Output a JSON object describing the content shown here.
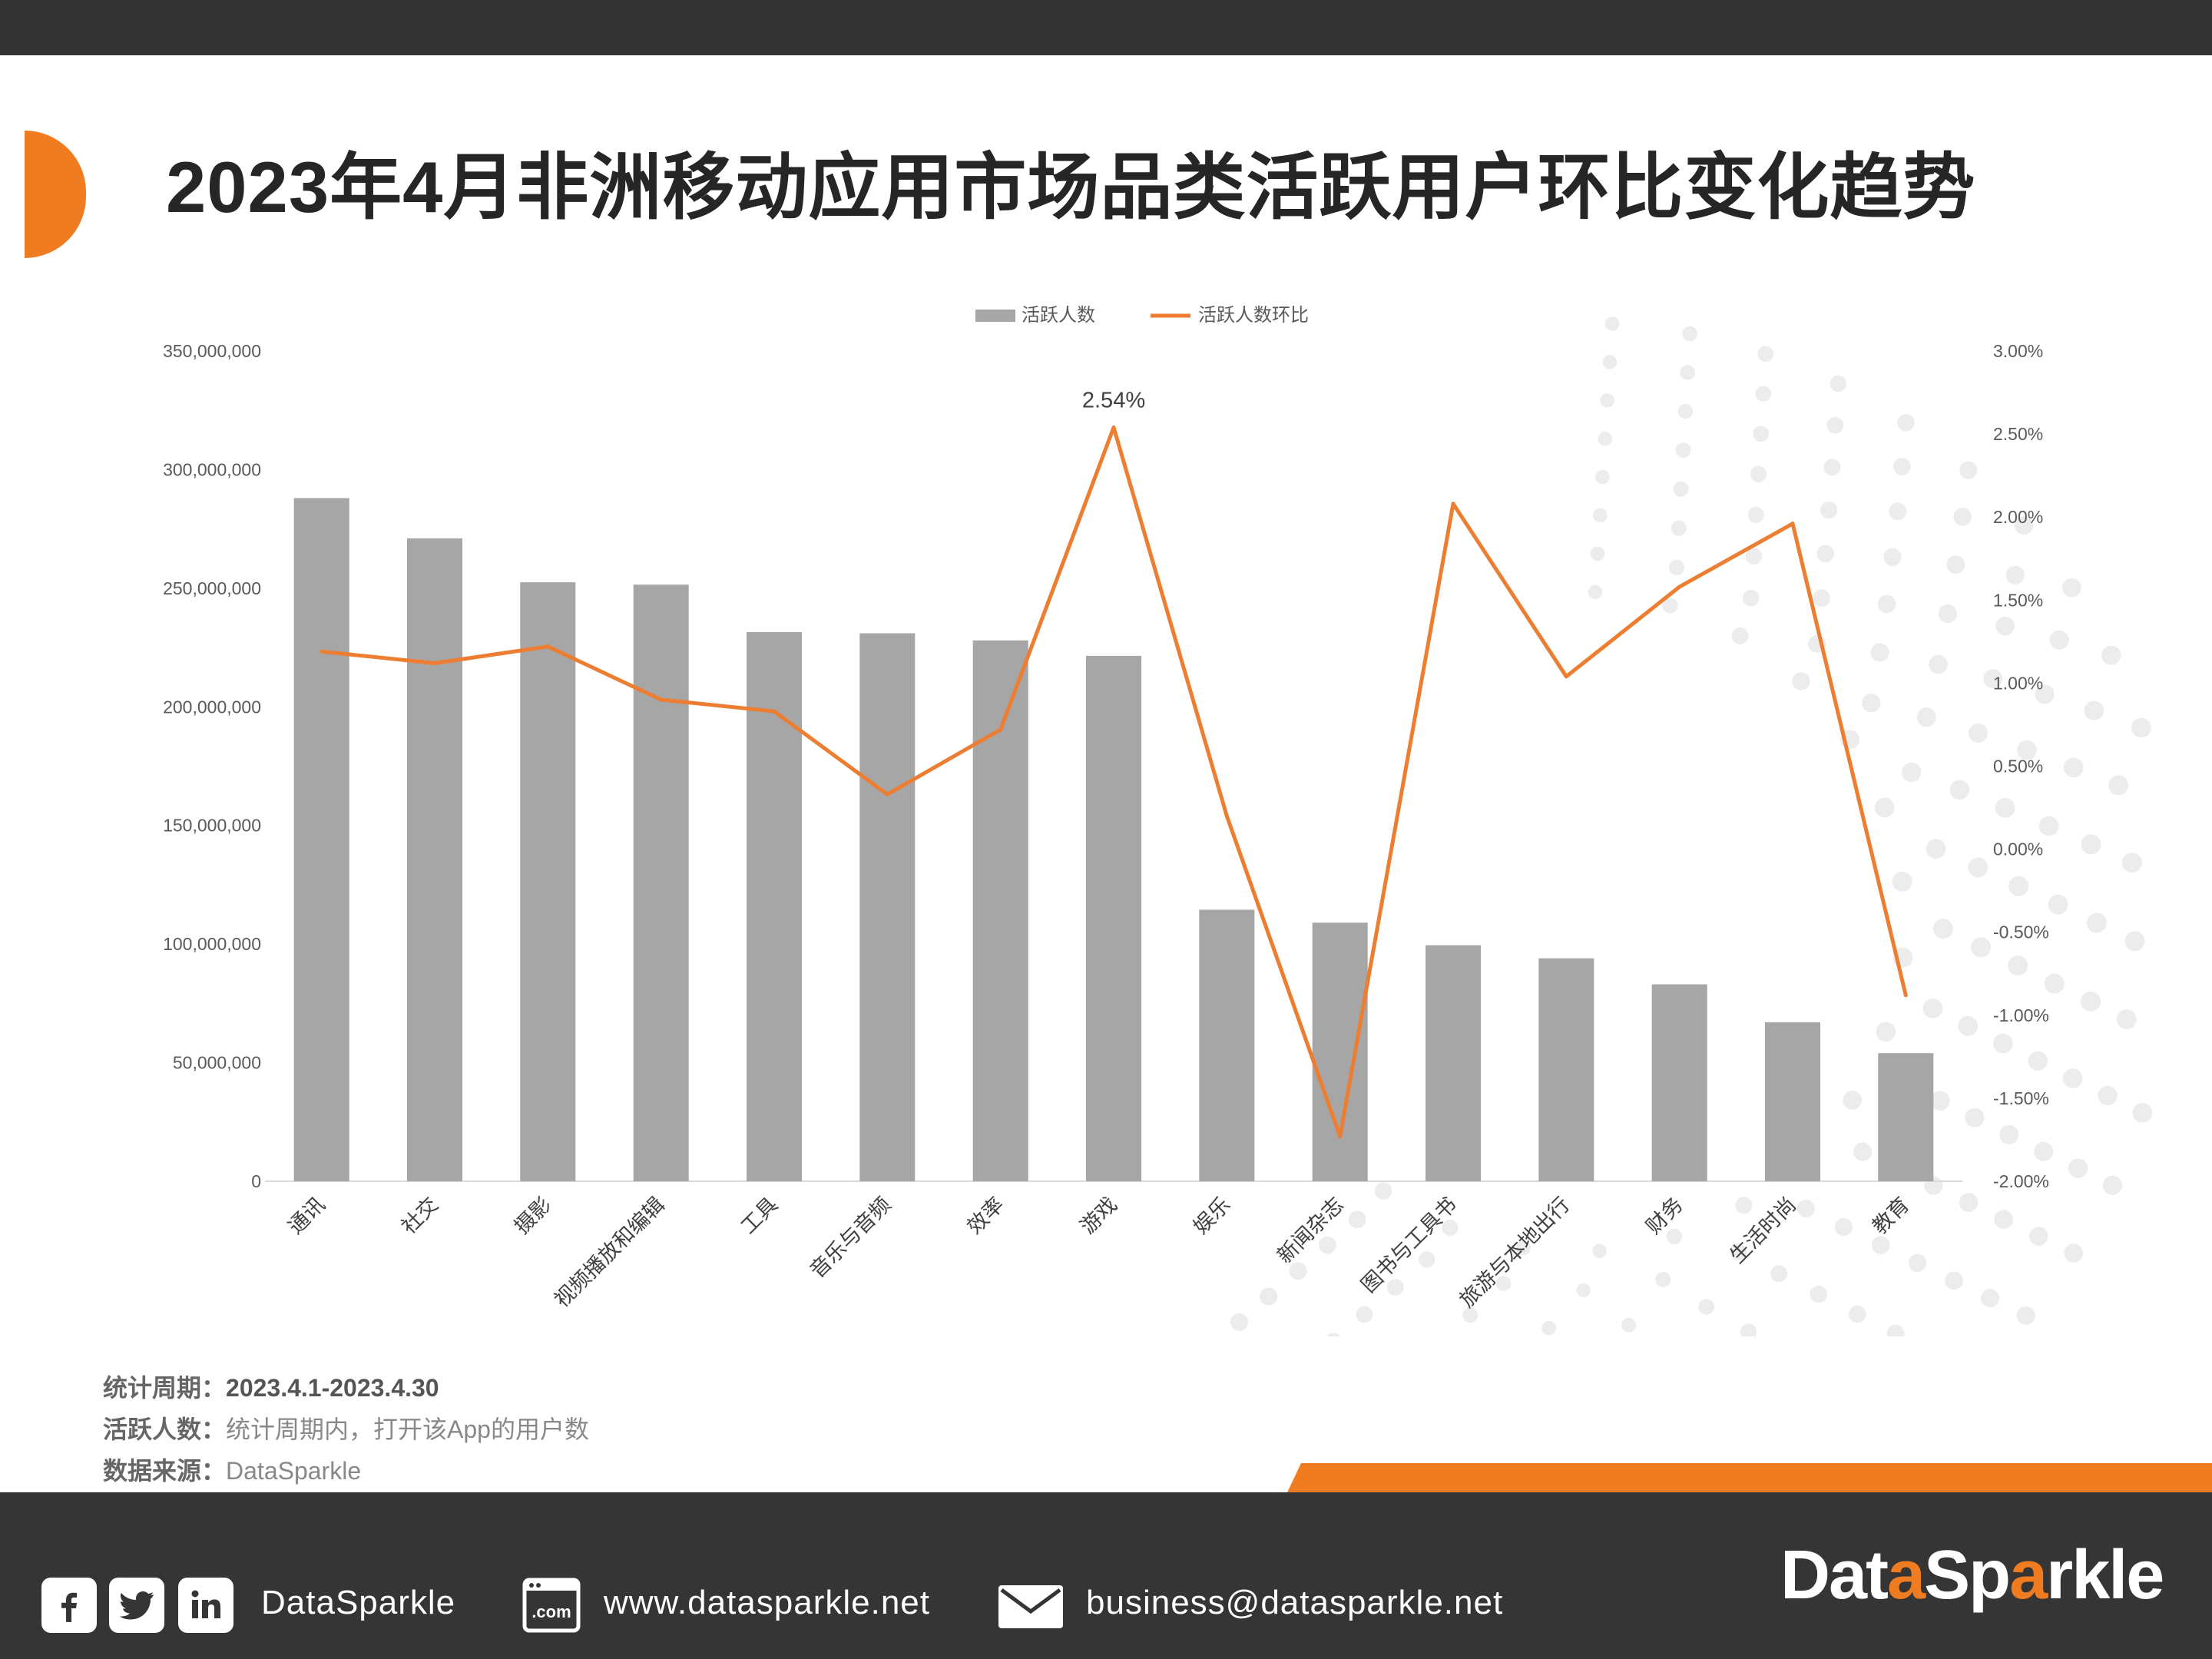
{
  "title": "2023年4月非洲移动应用市场品类活跃用户环比变化趋势",
  "chart_data": {
    "type": "bar",
    "categories": [
      "通讯",
      "社交",
      "摄影",
      "视频播放和编辑",
      "工具",
      "音乐与音频",
      "效率",
      "游戏",
      "娱乐",
      "新闻杂志",
      "图书与工具书",
      "旅游与本地出行",
      "财务",
      "生活时尚",
      "教育"
    ],
    "series": [
      {
        "name": "活跃人数",
        "type": "bar",
        "axis": "left",
        "color": "#a6a6a6",
        "values": [
          288000000,
          271000000,
          252500000,
          251500000,
          231500000,
          231000000,
          228000000,
          221500000,
          114500000,
          109000000,
          99500000,
          94000000,
          83000000,
          67000000,
          54000000
        ]
      },
      {
        "name": "活跃人数环比",
        "type": "line",
        "axis": "right",
        "color": "#ed7d31",
        "values": [
          1.19,
          1.12,
          1.22,
          0.9,
          0.83,
          0.33,
          0.72,
          2.54,
          0.2,
          -1.73,
          2.08,
          1.04,
          1.58,
          1.96,
          -0.88
        ]
      }
    ],
    "y_left": {
      "min": 0,
      "max": 350000000,
      "step": 50000000,
      "tick_labels": [
        "0",
        "50,000,000",
        "100,000,000",
        "150,000,000",
        "200,000,000",
        "250,000,000",
        "300,000,000",
        "350,000,000"
      ]
    },
    "y_right": {
      "min": -2.0,
      "max": 3.0,
      "step": 0.5,
      "tick_labels": [
        "-2.00%",
        "-1.50%",
        "-1.00%",
        "-0.50%",
        "0.00%",
        "0.50%",
        "1.00%",
        "1.50%",
        "2.00%",
        "2.50%",
        "3.00%"
      ]
    },
    "annotations": [
      {
        "category": "游戏",
        "text": "2.54%"
      }
    ],
    "legend_position": "top-center",
    "grid": false
  },
  "notes": [
    {
      "label": "统计周期：",
      "value": "2023.4.1-2023.4.30"
    },
    {
      "label": "活跃人数：",
      "value": "统计周期内，打开该App的用户数"
    },
    {
      "label": "数据来源：",
      "value": "DataSparkle"
    }
  ],
  "footer": {
    "social_name": "DataSparkle",
    "website": "www.datasparkle.net",
    "email": "business@datasparkle.net",
    "brand_prefix": "Dat",
    "brand_o": "a",
    "brand_mid": "Sp",
    "brand_o2": "a",
    "brand_suffix": "rkle",
    "icons": [
      "facebook-icon",
      "twitter-icon",
      "linkedin-icon",
      "browser-icon",
      "mail-icon"
    ]
  }
}
